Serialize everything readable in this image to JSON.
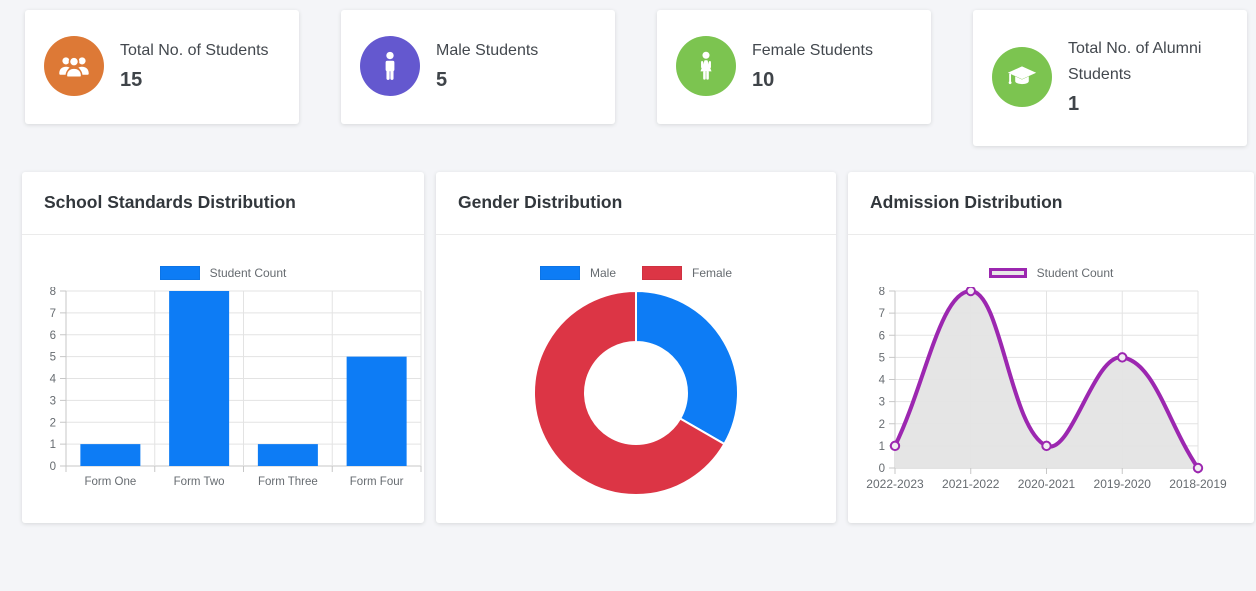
{
  "page": {
    "background": "#f4f5f8"
  },
  "stat_cards": [
    {
      "label": "Total No. of Students",
      "value": "15",
      "icon": "users-icon",
      "icon_bg": "#dd7936"
    },
    {
      "label": "Male Students",
      "value": "5",
      "icon": "male-icon",
      "icon_bg": "#6458cf"
    },
    {
      "label": "Female Students",
      "value": "10",
      "icon": "female-icon",
      "icon_bg": "#7cc450"
    },
    {
      "label": "Total No. of Alumni Students",
      "value": "1",
      "icon": "graduation-cap-icon",
      "icon_bg": "#7cc450"
    }
  ],
  "panels": [
    {
      "title": "School Standards Distribution"
    },
    {
      "title": "Gender Distribution"
    },
    {
      "title": "Admission Distribution"
    }
  ],
  "chart_data": [
    {
      "type": "bar",
      "title": "School Standards Distribution",
      "categories": [
        "Form One",
        "Form Two",
        "Form Three",
        "Form Four"
      ],
      "series": [
        {
          "name": "Student Count",
          "values": [
            1,
            8,
            1,
            5
          ],
          "color": "#0d7cf5"
        }
      ],
      "xlabel": "",
      "ylabel": "",
      "ylim": [
        0,
        8
      ],
      "ytick_step": 1,
      "grid": true,
      "legend_position": "top"
    },
    {
      "type": "pie",
      "title": "Gender Distribution",
      "labels": [
        "Male",
        "Female"
      ],
      "values": [
        5,
        10
      ],
      "colors": [
        "#0d7cf5",
        "#dc3545"
      ],
      "donut": true,
      "cutout_ratio": 0.5,
      "start_angle_deg": -90,
      "legend_position": "top"
    },
    {
      "type": "line",
      "title": "Admission Distribution",
      "categories": [
        "2022-2023",
        "2021-2022",
        "2020-2021",
        "2019-2020",
        "2018-2019"
      ],
      "series": [
        {
          "name": "Student Count",
          "values": [
            1,
            8,
            1,
            5,
            0
          ],
          "color": "#9c27b0",
          "fill": "#e4e4e4",
          "tension": 0.4
        }
      ],
      "xlabel": "",
      "ylabel": "",
      "ylim": [
        0,
        8
      ],
      "ytick_step": 1,
      "grid": true,
      "legend_position": "top"
    }
  ]
}
